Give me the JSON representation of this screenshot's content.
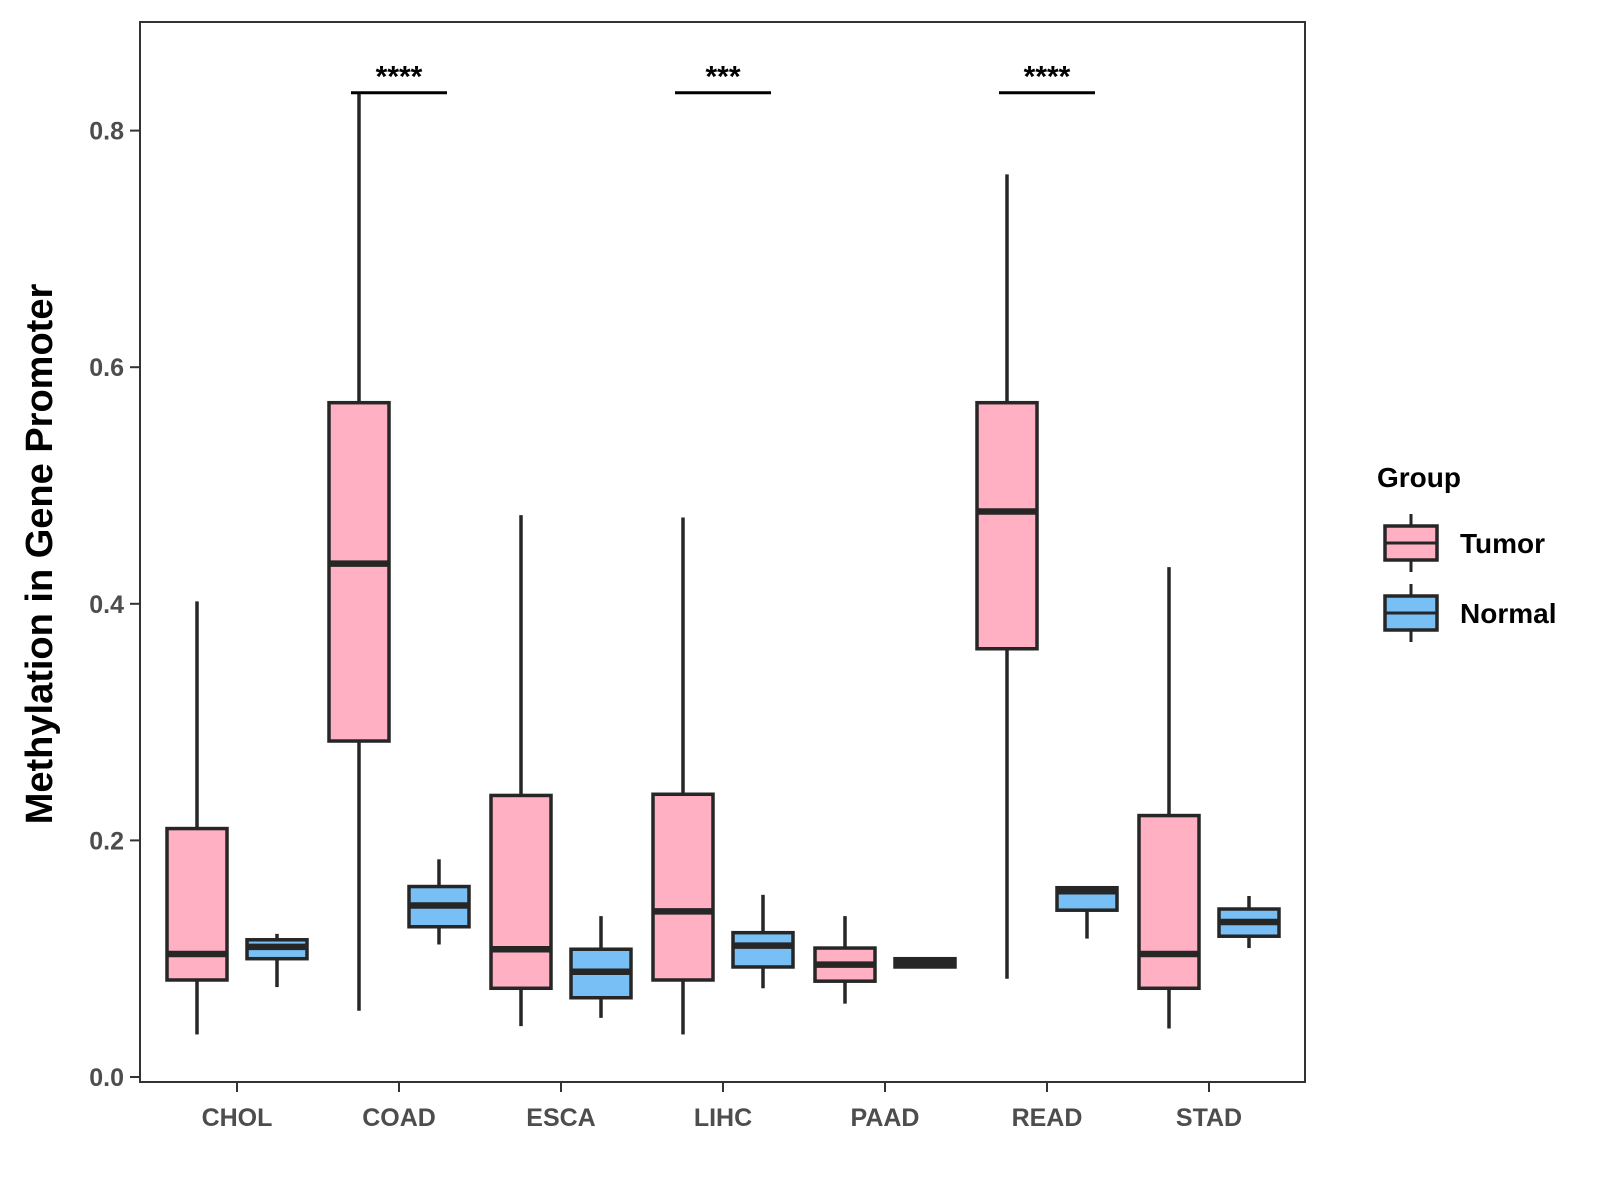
{
  "chart_data": {
    "type": "boxplot",
    "ylabel": "Methylation in Gene Promoter",
    "xlabel": "",
    "ylim": [
      0.0,
      0.89
    ],
    "yticks": [
      0.0,
      0.2,
      0.4,
      0.6,
      0.8
    ],
    "ytick_labels": [
      "0.0",
      "0.2",
      "0.4",
      "0.6",
      "0.8"
    ],
    "grid": false,
    "categories": [
      "CHOL",
      "COAD",
      "ESCA",
      "LIHC",
      "PAAD",
      "READ",
      "STAD"
    ],
    "legend": {
      "title": "Group",
      "position": "right",
      "entries": [
        "Tumor",
        "Normal"
      ]
    },
    "series": [
      {
        "name": "Tumor",
        "color": "#FFB0C2",
        "boxes": [
          {
            "category": "CHOL",
            "min": 0.036,
            "q1": 0.082,
            "median": 0.104,
            "q3": 0.21,
            "max": 0.402
          },
          {
            "category": "COAD",
            "min": 0.056,
            "q1": 0.284,
            "median": 0.434,
            "q3": 0.57,
            "max": 0.832
          },
          {
            "category": "ESCA",
            "min": 0.043,
            "q1": 0.075,
            "median": 0.108,
            "q3": 0.238,
            "max": 0.475
          },
          {
            "category": "LIHC",
            "min": 0.036,
            "q1": 0.082,
            "median": 0.14,
            "q3": 0.239,
            "max": 0.473
          },
          {
            "category": "PAAD",
            "min": 0.062,
            "q1": 0.081,
            "median": 0.095,
            "q3": 0.109,
            "max": 0.136
          },
          {
            "category": "READ",
            "min": 0.083,
            "q1": 0.362,
            "median": 0.478,
            "q3": 0.57,
            "max": 0.763
          },
          {
            "category": "STAD",
            "min": 0.041,
            "q1": 0.075,
            "median": 0.104,
            "q3": 0.221,
            "max": 0.431
          }
        ]
      },
      {
        "name": "Normal",
        "color": "#78BFF5",
        "boxes": [
          {
            "category": "CHOL",
            "min": 0.076,
            "q1": 0.1,
            "median": 0.11,
            "q3": 0.116,
            "max": 0.121
          },
          {
            "category": "COAD",
            "min": 0.112,
            "q1": 0.127,
            "median": 0.145,
            "q3": 0.161,
            "max": 0.184
          },
          {
            "category": "ESCA",
            "min": 0.05,
            "q1": 0.067,
            "median": 0.089,
            "q3": 0.108,
            "max": 0.136
          },
          {
            "category": "LIHC",
            "min": 0.075,
            "q1": 0.093,
            "median": 0.111,
            "q3": 0.122,
            "max": 0.154
          },
          {
            "category": "PAAD",
            "min": 0.093,
            "q1": 0.093,
            "median": 0.096,
            "q3": 0.1,
            "max": 0.1
          },
          {
            "category": "READ",
            "min": 0.117,
            "q1": 0.141,
            "median": 0.157,
            "q3": 0.16,
            "max": 0.16
          },
          {
            "category": "STAD",
            "min": 0.109,
            "q1": 0.119,
            "median": 0.131,
            "q3": 0.142,
            "max": 0.153
          }
        ]
      }
    ],
    "annotations": [
      {
        "category": "COAD",
        "label": "****",
        "y": 0.832
      },
      {
        "category": "LIHC",
        "label": "***",
        "y": 0.832
      },
      {
        "category": "READ",
        "label": "****",
        "y": 0.832
      }
    ]
  }
}
